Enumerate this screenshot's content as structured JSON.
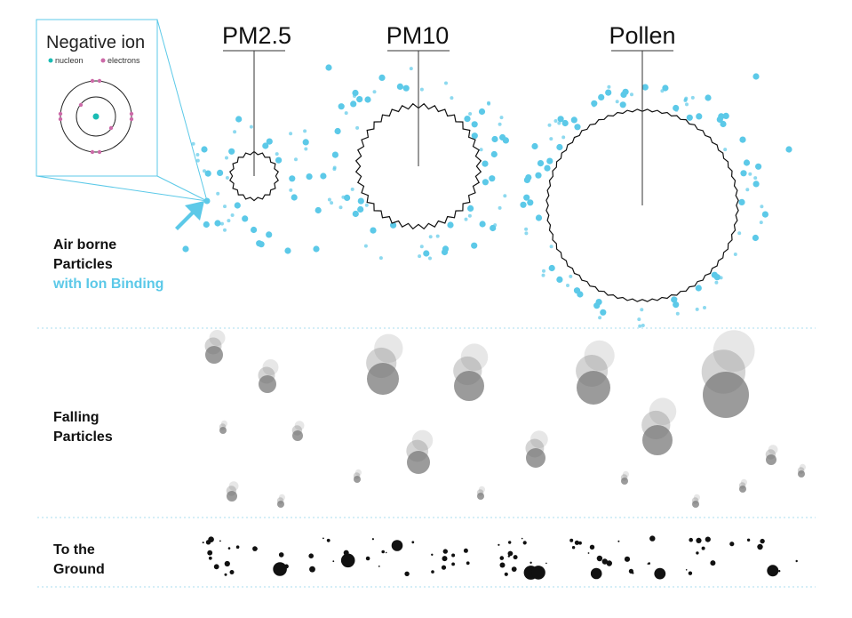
{
  "inset": {
    "title": "Negative ion",
    "legend_nucleon": "nucleon",
    "legend_electrons": "electrons"
  },
  "particles": {
    "pm25": "PM2.5",
    "pm10": "PM10",
    "pollen": "Pollen"
  },
  "sections": {
    "airborne_line1": "Air borne",
    "airborne_line2": "Particles",
    "airborne_line3": "with Ion Binding",
    "falling_line1": "Falling",
    "falling_line2": "Particles",
    "ground_line1": "To the",
    "ground_line2": "Ground"
  },
  "colors": {
    "ion_blue": "#5cc9e8",
    "electron_pink": "#cc6aa8",
    "nucleon_teal": "#1abcb4",
    "particle_grey": "#7a7a7a",
    "divider_blue": "#a8dcef"
  }
}
